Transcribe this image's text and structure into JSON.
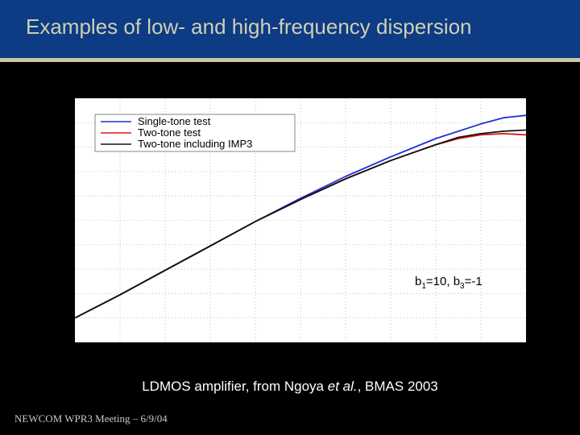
{
  "slide": {
    "title": "Examples of low- and high-frequency dispersion",
    "caption_prefix": "LDMOS amplifier, from Ngoya ",
    "caption_italic": "et al.",
    "caption_suffix": ", BMAS 2003",
    "footer": "NEWCOM  WPR3 Meeting – 6/9/04",
    "colors": {
      "title_bar": "#0d3b84",
      "rule": "#c8c9a8",
      "title_text": "#cfd0b4"
    }
  },
  "chart_data": {
    "type": "line",
    "title": "",
    "xlabel": "",
    "ylabel": "",
    "xlim": [
      0,
      10
    ],
    "ylim": [
      0,
      10
    ],
    "grid": true,
    "legend_placement": "top-left",
    "annotation": {
      "b1_prefix": "b",
      "b1_sub": "1",
      "b1_value": "=10, ",
      "b3_prefix": "b",
      "b3_sub": "3",
      "b3_value": "=-1"
    },
    "series": [
      {
        "name": "Single-tone test",
        "color": "#1f2fd6",
        "x": [
          0,
          1,
          2,
          3,
          4,
          5,
          6,
          7,
          8,
          9,
          9.5,
          10
        ],
        "y": [
          1.0,
          1.95,
          2.95,
          3.95,
          4.95,
          5.9,
          6.8,
          7.6,
          8.35,
          8.95,
          9.2,
          9.3
        ]
      },
      {
        "name": "Two-tone test",
        "color": "#e01010",
        "x": [
          0,
          1,
          2,
          3,
          4,
          5,
          6,
          7,
          8,
          8.5,
          9,
          9.5,
          10
        ],
        "y": [
          1.0,
          1.95,
          2.95,
          3.95,
          4.95,
          5.85,
          6.7,
          7.45,
          8.1,
          8.35,
          8.5,
          8.55,
          8.5
        ]
      },
      {
        "name": "Two-tone including IMP3",
        "color": "#111111",
        "x": [
          0,
          1,
          2,
          3,
          4,
          5,
          6,
          7,
          8,
          8.5,
          9,
          9.5,
          10
        ],
        "y": [
          1.0,
          1.95,
          2.95,
          3.95,
          4.95,
          5.85,
          6.7,
          7.45,
          8.1,
          8.4,
          8.55,
          8.65,
          8.7
        ]
      }
    ]
  }
}
